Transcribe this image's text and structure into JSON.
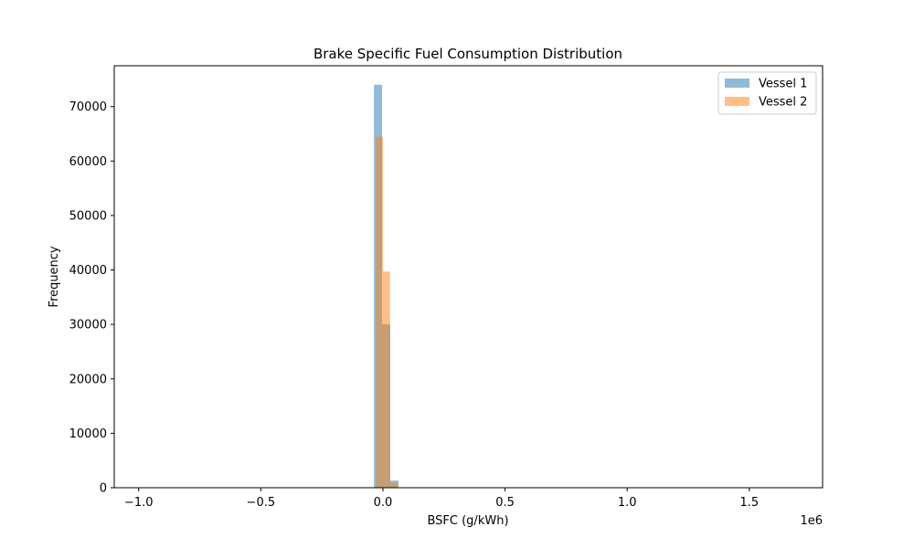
{
  "chart_data": {
    "type": "bar",
    "subtype": "overlapping-histogram",
    "title": "Brake Specific Fuel Consumption Distribution",
    "xlabel": "BSFC (g/kWh)",
    "ylabel": "Frequency",
    "x_offset_label": "1e6",
    "x_scale": 1000000,
    "xlim": [
      -1100000,
      1800000
    ],
    "ylim": [
      0,
      77500
    ],
    "x_ticks": [
      -1000000,
      -500000,
      0,
      500000,
      1000000,
      1500000
    ],
    "x_tick_labels": [
      "−1.0",
      "−0.5",
      "0.0",
      "0.5",
      "1.0",
      "1.5"
    ],
    "y_ticks": [
      0,
      10000,
      20000,
      30000,
      40000,
      50000,
      60000,
      70000
    ],
    "y_tick_labels": [
      "0",
      "10000",
      "20000",
      "30000",
      "40000",
      "50000",
      "60000",
      "70000"
    ],
    "grid": false,
    "legend": {
      "position": "top-right"
    },
    "series": [
      {
        "name": "Vessel 1",
        "color": "#1f77b4",
        "alpha": 0.5,
        "bins": [
          {
            "x0": -37000,
            "x1": -3500,
            "count": 74000
          },
          {
            "x0": -3500,
            "x1": 30000,
            "count": 30000
          },
          {
            "x0": 30000,
            "x1": 63500,
            "count": 1300
          }
        ]
      },
      {
        "name": "Vessel 2",
        "color": "#ff7f0e",
        "alpha": 0.5,
        "bins": [
          {
            "x0": -29000,
            "x1": 0,
            "count": 64500
          },
          {
            "x0": 0,
            "x1": 29000,
            "count": 39700
          },
          {
            "x0": 29000,
            "x1": 62000,
            "count": 900
          }
        ]
      }
    ]
  }
}
